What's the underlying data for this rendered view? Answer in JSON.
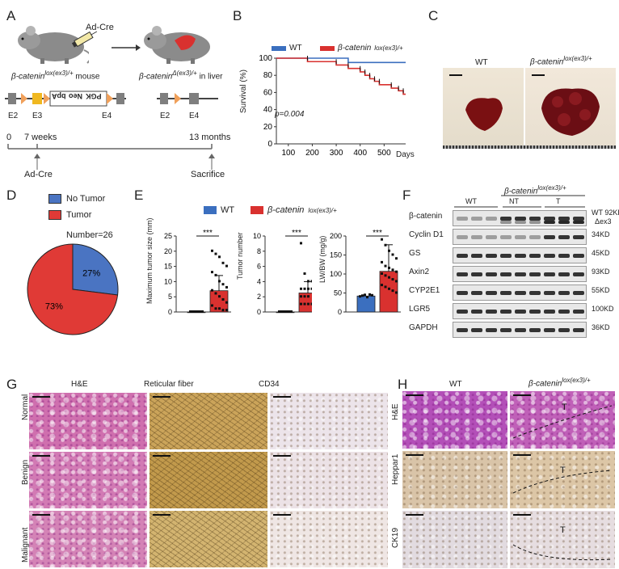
{
  "panels": {
    "A": "A",
    "B": "B",
    "C": "C",
    "D": "D",
    "E": "E",
    "F": "F",
    "G": "G",
    "H": "H"
  },
  "A": {
    "ad_cre": "Ad-Cre",
    "mouse_left": "β-catenin",
    "mouse_left_sup": "lox(ex3)/+",
    "mouse_left_suffix": " mouse",
    "mouse_right": "β-catenin",
    "mouse_right_sup": "Δ(ex3)/+",
    "mouse_right_suffix": " in liver",
    "construct_labels": [
      "E2",
      "E3",
      "PGK",
      "Neo",
      "bpA",
      "E4"
    ],
    "construct2_labels": [
      "E2",
      "E4"
    ],
    "timeline": {
      "t0": "0",
      "t1": "7 weeks",
      "t2": "13 months",
      "start_event": "Ad-Cre",
      "end_event": "Sacrifice"
    }
  },
  "B": {
    "legend": [
      {
        "name": "WT",
        "color": "#3b6fbf"
      },
      {
        "name": "β-catenin",
        "sup": "lox(ex3)/+",
        "color": "#d9312f"
      }
    ],
    "ylabel": "Survival (%)",
    "xlabel": "Days",
    "pvalue": "p=0.004",
    "yticks": [
      "0",
      "20",
      "40",
      "60",
      "80",
      "100"
    ],
    "xticks": [
      "100",
      "200",
      "300",
      "400",
      "500"
    ]
  },
  "chart_data": [
    {
      "type": "line",
      "title": "",
      "xlabel": "Days",
      "ylabel": "Survival (%)",
      "xlim": [
        50,
        590
      ],
      "ylim": [
        0,
        100
      ],
      "series": [
        {
          "name": "WT",
          "x": [
            50,
            350,
            350,
            590
          ],
          "values": [
            100,
            100,
            95,
            95
          ]
        },
        {
          "name": "β-catenin lox(ex3)/+",
          "x": [
            50,
            180,
            180,
            300,
            300,
            350,
            350,
            400,
            400,
            420,
            420,
            440,
            440,
            460,
            460,
            480,
            480,
            530,
            530,
            560,
            560,
            580,
            580,
            590
          ],
          "values": [
            100,
            100,
            96,
            96,
            92,
            92,
            88,
            88,
            84,
            84,
            80,
            80,
            76,
            76,
            73,
            73,
            69,
            69,
            65,
            65,
            62,
            62,
            58,
            58
          ]
        }
      ]
    },
    {
      "type": "pie",
      "title": "Number=26",
      "categories": [
        "No Tumor",
        "Tumor"
      ],
      "values": [
        27,
        73
      ],
      "colors": [
        "#4a74c2",
        "#e03a36"
      ]
    },
    {
      "type": "bar",
      "ylabel": "Maximum tumor size (mm)",
      "categories": [
        "WT",
        "β-catenin lox(ex3)/+"
      ],
      "values": [
        0,
        7
      ],
      "ylim": [
        0,
        25
      ],
      "yticks": [
        0,
        5,
        10,
        15,
        20,
        25
      ],
      "significance": "***"
    },
    {
      "type": "bar",
      "ylabel": "Tumor number",
      "categories": [
        "WT",
        "β-catenin lox(ex3)/+"
      ],
      "values": [
        0,
        2.5
      ],
      "ylim": [
        0,
        10
      ],
      "yticks": [
        0,
        2,
        4,
        6,
        8,
        10
      ],
      "significance": "***"
    },
    {
      "type": "bar",
      "ylabel": "LW/BW (mg/g)",
      "categories": [
        "WT",
        "β-catenin lox(ex3)/+"
      ],
      "values": [
        42,
        107
      ],
      "ylim": [
        0,
        200
      ],
      "yticks": [
        0,
        50,
        100,
        150,
        200
      ],
      "significance": "***"
    }
  ],
  "C": {
    "wt": "WT",
    "mut": "β-catenin",
    "mut_sup": "lox(ex3)/+"
  },
  "D": {
    "legend": [
      "No Tumor",
      "Tumor"
    ],
    "number": "Number=26",
    "pct_no": "27%",
    "pct_yes": "73%"
  },
  "E": {
    "legend_wt": "WT",
    "legend_mut": "β-catenin",
    "legend_mut_sup": "lox(ex3)/+",
    "sig": "***",
    "ylabels": [
      "Maximum tumor size (mm)",
      "Tumor number",
      "LW/BW (mg/g)"
    ],
    "yticks1": [
      "0",
      "5",
      "10",
      "15",
      "20",
      "25"
    ],
    "yticks2": [
      "0",
      "2",
      "4",
      "6",
      "8",
      "10"
    ],
    "yticks3": [
      "0",
      "50",
      "100",
      "150",
      "200"
    ]
  },
  "F": {
    "header": "β-catenin",
    "header_sup": "lox(ex3)/+",
    "groups": [
      "WT",
      "NT",
      "T"
    ],
    "rows": [
      {
        "name": "β-catenin",
        "size": "WT 92KD",
        "size2": "Δex3"
      },
      {
        "name": "Cyclin D1",
        "size": "34KD"
      },
      {
        "name": "GS",
        "size": "45KD"
      },
      {
        "name": "Axin2",
        "size": "93KD"
      },
      {
        "name": "CYP2E1",
        "size": "55KD"
      },
      {
        "name": "LGR5",
        "size": "100KD"
      },
      {
        "name": "GAPDH",
        "size": "36KD"
      }
    ]
  },
  "G": {
    "cols": [
      "H&E",
      "Reticular fiber",
      "CD34"
    ],
    "rows": [
      "Normal",
      "Benign",
      "Malignant"
    ]
  },
  "H": {
    "cols": [
      "WT",
      "β-catenin"
    ],
    "col_sup": "lox(ex3)/+",
    "rows": [
      "H&E",
      "Heppar1",
      "CK19"
    ],
    "tumor": "T"
  },
  "colors": {
    "wt": "#3b6fbf",
    "mut": "#d9312f",
    "he": "#c86aa8",
    "fiber": "#c6a25a",
    "ihc": "#e8dfe6"
  }
}
